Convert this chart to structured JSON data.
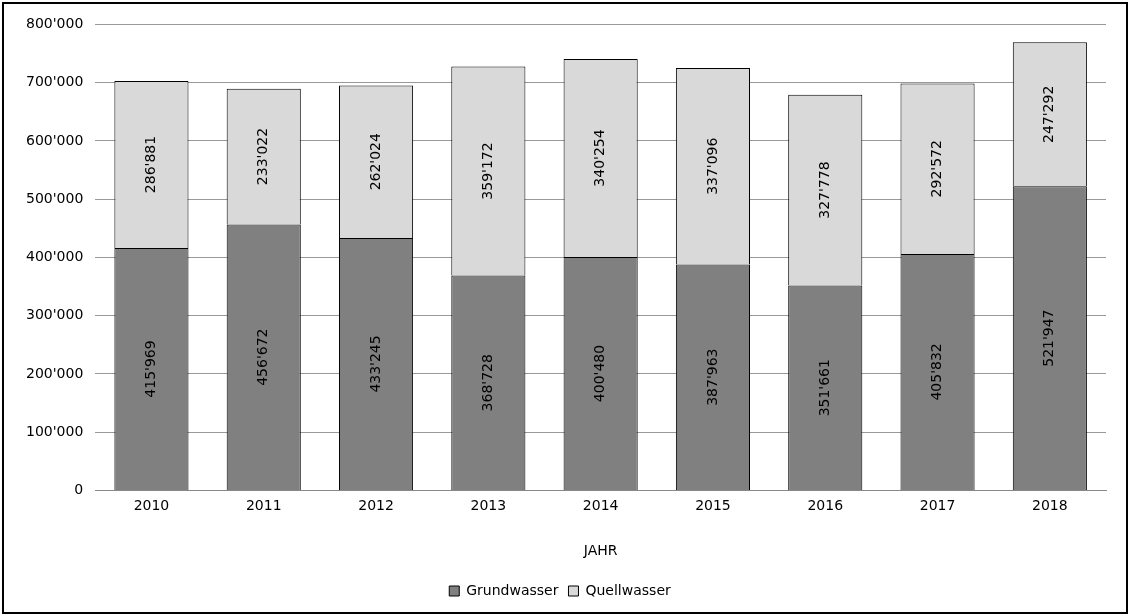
{
  "chart_data": {
    "type": "bar",
    "stacked": true,
    "xlabel": "JAHR",
    "categories": [
      "2010",
      "2011",
      "2012",
      "2013",
      "2014",
      "2015",
      "2016",
      "2017",
      "2018"
    ],
    "series": [
      {
        "name": "Grundwasser",
        "color": "#808080",
        "values": [
          415969,
          456672,
          433245,
          368728,
          400480,
          387963,
          351661,
          405832,
          521947
        ],
        "value_labels": [
          "415'969",
          "456'672",
          "433'245",
          "368'728",
          "400'480",
          "387'963",
          "351'661",
          "405'832",
          "521'947"
        ]
      },
      {
        "name": "Quellwasser",
        "color": "#d9d9d9",
        "values": [
          286881,
          233022,
          262024,
          359172,
          340254,
          337096,
          327778,
          292572,
          247292
        ],
        "value_labels": [
          "286'881",
          "233'022",
          "262'024",
          "359'172",
          "340'254",
          "337'096",
          "327'778",
          "292'572",
          "247'292"
        ]
      }
    ],
    "ylim": [
      0,
      800000
    ],
    "yticks": [
      {
        "value": 0,
        "label": "0"
      },
      {
        "value": 100000,
        "label": "100'000"
      },
      {
        "value": 200000,
        "label": "200'000"
      },
      {
        "value": 300000,
        "label": "300'000"
      },
      {
        "value": 400000,
        "label": "400'000"
      },
      {
        "value": 500000,
        "label": "500'000"
      },
      {
        "value": 600000,
        "label": "600'000"
      },
      {
        "value": 700000,
        "label": "700'000"
      },
      {
        "value": 800000,
        "label": "800'000"
      }
    ],
    "grid": "y",
    "legend": "bottom"
  }
}
